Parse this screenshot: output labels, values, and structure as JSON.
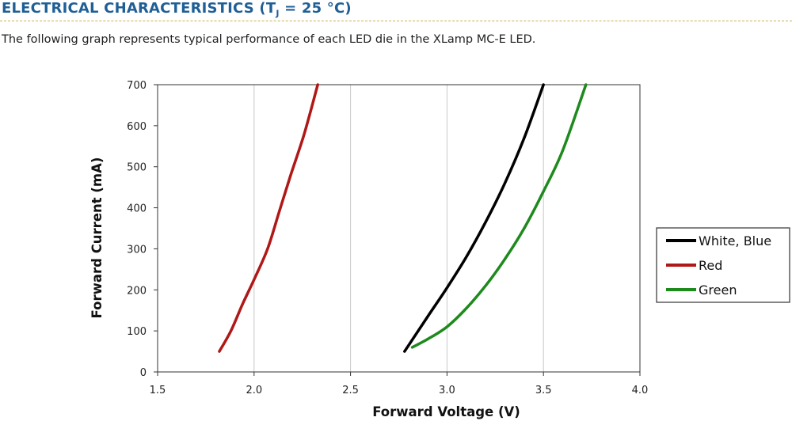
{
  "heading": {
    "title_main": "ELECTRICAL CHARACTERISTICS (T",
    "title_sub": "J",
    "title_end": " = 25 °C)"
  },
  "intro_text": "The following graph represents typical performance of each LED die in the XLamp MC-E LED.",
  "chart_data": {
    "type": "line",
    "xlabel": "Forward Voltage (V)",
    "ylabel": "Forward Current (mA)",
    "xlim": [
      1.5,
      4.0
    ],
    "ylim": [
      0,
      700
    ],
    "xticks": [
      "1.5",
      "2.0",
      "2.5",
      "3.0",
      "3.5",
      "4.0"
    ],
    "yticks": [
      "0",
      "100",
      "200",
      "300",
      "400",
      "500",
      "600",
      "700"
    ],
    "grid": true,
    "legend_position": "right",
    "series": [
      {
        "name": "White, Blue",
        "color": "#000000",
        "x": [
          2.78,
          2.9,
          3.0,
          3.1,
          3.2,
          3.3,
          3.4,
          3.5
        ],
        "y": [
          50,
          135,
          205,
          280,
          365,
          460,
          570,
          700
        ]
      },
      {
        "name": "Red",
        "color": "#b01818",
        "x": [
          1.82,
          1.88,
          1.94,
          2.0,
          2.07,
          2.13,
          2.19,
          2.26,
          2.33
        ],
        "y": [
          50,
          100,
          165,
          225,
          300,
          390,
          480,
          580,
          700
        ]
      },
      {
        "name": "Green",
        "color": "#1e8a1e",
        "x": [
          2.82,
          2.9,
          3.0,
          3.1,
          3.2,
          3.3,
          3.4,
          3.5,
          3.6,
          3.72
        ],
        "y": [
          60,
          80,
          110,
          155,
          210,
          275,
          350,
          440,
          540,
          700
        ]
      }
    ]
  }
}
